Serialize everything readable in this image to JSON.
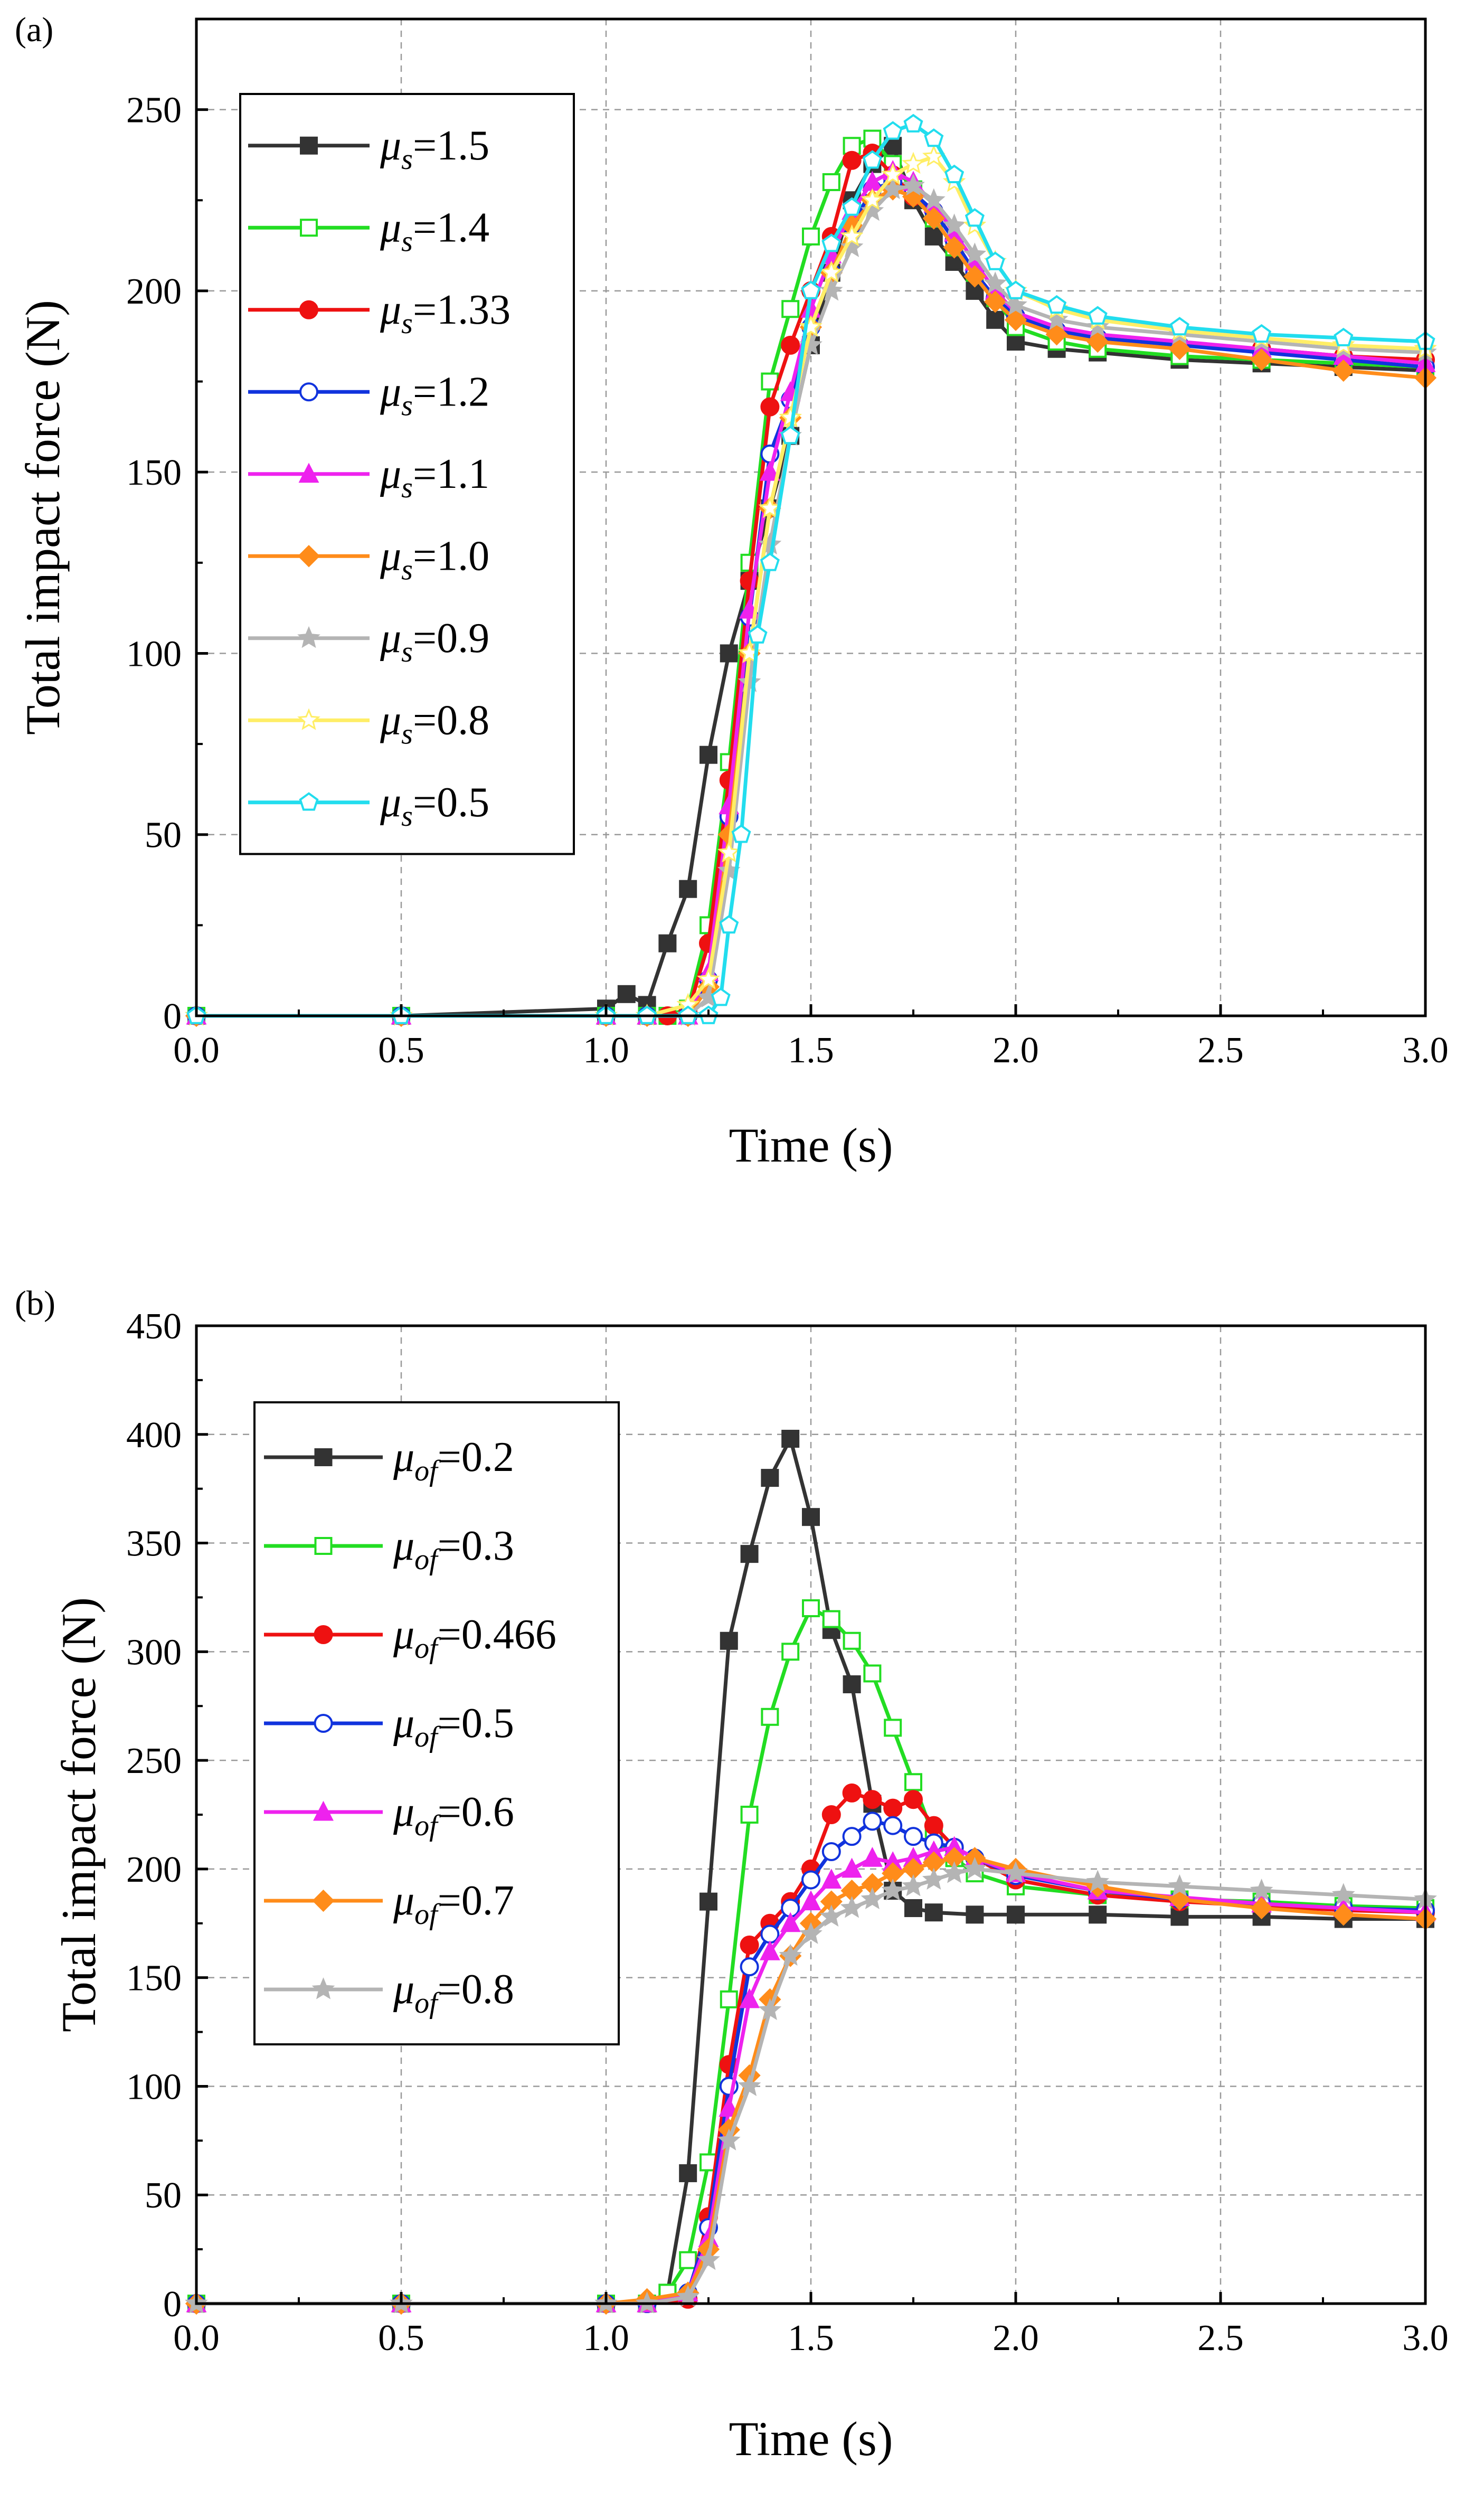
{
  "chart_data": [
    {
      "type": "line",
      "panel_label": "(a)",
      "title": "",
      "xlabel": "Time (s)",
      "ylabel": "Total impact force (N)",
      "xlim": [
        0.0,
        3.0
      ],
      "ylim": [
        0,
        275
      ],
      "xticks": [
        "0.0",
        "0.5",
        "1.0",
        "1.5",
        "2.0",
        "2.5",
        "3.0"
      ],
      "xtick_values": [
        0,
        0.5,
        1.0,
        1.5,
        2.0,
        2.5,
        3.0
      ],
      "yticks": [
        "0",
        "50",
        "100",
        "150",
        "200",
        "250"
      ],
      "ytick_values": [
        0,
        50,
        100,
        150,
        200,
        250
      ],
      "grid": true,
      "legend_placement": "top-left",
      "legend_symbol": "μ",
      "series": [
        {
          "name": "=1.5",
          "sub": "s",
          "color": "#333333",
          "marker": "square-filled",
          "x": [
            0,
            0.5,
            1.0,
            1.05,
            1.1,
            1.15,
            1.2,
            1.25,
            1.3,
            1.35,
            1.4,
            1.45,
            1.5,
            1.55,
            1.6,
            1.65,
            1.7,
            1.75,
            1.8,
            1.85,
            1.9,
            1.95,
            2.0,
            2.1,
            2.2,
            2.4,
            2.6,
            2.8,
            3.0
          ],
          "y": [
            0,
            0,
            2,
            6,
            3,
            20,
            35,
            72,
            100,
            120,
            140,
            160,
            185,
            205,
            225,
            235,
            240,
            225,
            215,
            208,
            200,
            192,
            186,
            184,
            183,
            181,
            180,
            179,
            178
          ]
        },
        {
          "name": "=1.4",
          "sub": "s",
          "color": "#22dd22",
          "marker": "square-open",
          "x": [
            0,
            0.5,
            1.0,
            1.1,
            1.15,
            1.2,
            1.25,
            1.3,
            1.35,
            1.4,
            1.45,
            1.5,
            1.55,
            1.6,
            1.65,
            1.7,
            1.75,
            1.8,
            1.85,
            1.9,
            1.95,
            2.0,
            2.1,
            2.2,
            2.4,
            2.6,
            2.8,
            3.0
          ],
          "y": [
            0,
            0,
            0,
            0,
            0,
            2,
            25,
            70,
            125,
            175,
            195,
            215,
            230,
            240,
            242,
            235,
            228,
            220,
            212,
            205,
            198,
            190,
            186,
            184,
            182,
            181,
            180,
            179
          ]
        },
        {
          "name": "=1.33",
          "sub": "s",
          "color": "#ee1111",
          "marker": "circle-filled",
          "x": [
            0,
            0.5,
            1.0,
            1.1,
            1.15,
            1.2,
            1.25,
            1.3,
            1.35,
            1.4,
            1.45,
            1.5,
            1.55,
            1.6,
            1.65,
            1.7,
            1.75,
            1.8,
            1.85,
            1.9,
            1.95,
            2.0,
            2.1,
            2.2,
            2.4,
            2.6,
            2.8,
            3.0
          ],
          "y": [
            0,
            0,
            0,
            0,
            0,
            1,
            20,
            65,
            120,
            168,
            185,
            200,
            215,
            236,
            238,
            232,
            226,
            222,
            214,
            205,
            198,
            193,
            189,
            187,
            185,
            184,
            182,
            181
          ]
        },
        {
          "name": "=1.2",
          "sub": "s",
          "color": "#1133dd",
          "marker": "circle-open",
          "x": [
            0,
            0.5,
            1.0,
            1.1,
            1.2,
            1.25,
            1.3,
            1.35,
            1.4,
            1.45,
            1.5,
            1.55,
            1.6,
            1.65,
            1.7,
            1.75,
            1.8,
            1.85,
            1.9,
            1.95,
            2.0,
            2.1,
            2.2,
            2.4,
            2.6,
            2.8,
            3.0
          ],
          "y": [
            0,
            0,
            0,
            0,
            0,
            10,
            55,
            110,
            155,
            170,
            190,
            205,
            218,
            228,
            230,
            227,
            222,
            214,
            205,
            198,
            193,
            189,
            187,
            185,
            183,
            181,
            179
          ]
        },
        {
          "name": "=1.1",
          "sub": "s",
          "color": "#ee22ee",
          "marker": "triangle-filled",
          "x": [
            0,
            0.5,
            1.0,
            1.1,
            1.2,
            1.25,
            1.3,
            1.35,
            1.4,
            1.45,
            1.5,
            1.55,
            1.6,
            1.65,
            1.7,
            1.75,
            1.8,
            1.85,
            1.9,
            1.95,
            2.0,
            2.1,
            2.2,
            2.4,
            2.6,
            2.8,
            3.0
          ],
          "y": [
            0,
            0,
            0,
            0,
            0,
            12,
            58,
            112,
            150,
            172,
            195,
            210,
            222,
            230,
            233,
            230,
            224,
            216,
            208,
            200,
            194,
            190,
            188,
            186,
            184,
            182,
            180
          ]
        },
        {
          "name": "=1.0",
          "sub": "s",
          "color": "#ff8c1a",
          "marker": "diamond-filled",
          "x": [
            0,
            0.5,
            1.0,
            1.1,
            1.2,
            1.25,
            1.3,
            1.35,
            1.4,
            1.45,
            1.5,
            1.55,
            1.6,
            1.65,
            1.7,
            1.75,
            1.8,
            1.85,
            1.9,
            1.95,
            2.0,
            2.1,
            2.2,
            2.4,
            2.6,
            2.8,
            3.0
          ],
          "y": [
            0,
            0,
            0,
            0,
            0,
            8,
            50,
            100,
            140,
            165,
            190,
            205,
            218,
            225,
            228,
            226,
            220,
            212,
            204,
            197,
            192,
            188,
            186,
            184,
            181,
            178,
            176
          ]
        },
        {
          "name": "=0.9",
          "sub": "s",
          "color": "#b4b4b4",
          "marker": "star-filled",
          "x": [
            0,
            0.5,
            1.0,
            1.1,
            1.2,
            1.25,
            1.3,
            1.35,
            1.4,
            1.45,
            1.5,
            1.55,
            1.6,
            1.65,
            1.7,
            1.75,
            1.8,
            1.85,
            1.9,
            1.95,
            2.0,
            2.1,
            2.2,
            2.4,
            2.6,
            2.8,
            3.0
          ],
          "y": [
            0,
            0,
            0,
            0,
            0,
            5,
            40,
            92,
            130,
            160,
            185,
            200,
            212,
            222,
            228,
            229,
            225,
            218,
            210,
            202,
            196,
            192,
            190,
            188,
            186,
            184,
            183
          ]
        },
        {
          "name": "=0.8",
          "sub": "s",
          "color": "#ffee66",
          "marker": "star-open",
          "x": [
            0,
            0.5,
            1.0,
            1.1,
            1.2,
            1.25,
            1.3,
            1.35,
            1.4,
            1.45,
            1.5,
            1.55,
            1.6,
            1.65,
            1.7,
            1.75,
            1.8,
            1.85,
            1.9,
            1.95,
            2.0,
            2.1,
            2.2,
            2.4,
            2.6,
            2.8,
            3.0
          ],
          "y": [
            0,
            0,
            0,
            0,
            3,
            10,
            45,
            100,
            140,
            165,
            190,
            205,
            215,
            225,
            232,
            235,
            237,
            230,
            218,
            208,
            200,
            195,
            192,
            189,
            187,
            185,
            184
          ]
        },
        {
          "name": "=0.5",
          "sub": "s",
          "color": "#22ddee",
          "marker": "pentagon-open",
          "x": [
            0,
            0.5,
            1.0,
            1.1,
            1.2,
            1.25,
            1.28,
            1.3,
            1.33,
            1.37,
            1.4,
            1.45,
            1.5,
            1.55,
            1.6,
            1.65,
            1.7,
            1.75,
            1.8,
            1.85,
            1.9,
            1.95,
            2.0,
            2.1,
            2.2,
            2.4,
            2.6,
            2.8,
            3.0
          ],
          "y": [
            0,
            0,
            0,
            0,
            0,
            0,
            5,
            25,
            50,
            105,
            125,
            160,
            200,
            213,
            223,
            236,
            244,
            246,
            242,
            232,
            220,
            208,
            200,
            196,
            193,
            190,
            188,
            187,
            186
          ]
        }
      ]
    },
    {
      "type": "line",
      "panel_label": "(b)",
      "title": "",
      "xlabel": "Time (s)",
      "ylabel": "Total impact force (N)",
      "xlim": [
        0.0,
        3.0
      ],
      "ylim": [
        0,
        450
      ],
      "xticks": [
        "0.0",
        "0.5",
        "1.0",
        "1.5",
        "2.0",
        "2.5",
        "3.0"
      ],
      "xtick_values": [
        0,
        0.5,
        1.0,
        1.5,
        2.0,
        2.5,
        3.0
      ],
      "yticks": [
        "0",
        "50",
        "100",
        "150",
        "200",
        "250",
        "300",
        "350",
        "400",
        "450"
      ],
      "ytick_values": [
        0,
        50,
        100,
        150,
        200,
        250,
        300,
        350,
        400,
        450
      ],
      "grid": true,
      "legend_placement": "top-left",
      "legend_symbol": "μ",
      "series": [
        {
          "name": "=0.2",
          "sub": "of",
          "color": "#333333",
          "marker": "square-filled",
          "x": [
            0,
            0.5,
            1.0,
            1.1,
            1.15,
            1.2,
            1.25,
            1.3,
            1.35,
            1.4,
            1.45,
            1.5,
            1.55,
            1.6,
            1.65,
            1.7,
            1.75,
            1.8,
            1.9,
            2.0,
            2.2,
            2.4,
            2.6,
            2.8,
            3.0
          ],
          "y": [
            0,
            0,
            0,
            0,
            5,
            60,
            185,
            305,
            345,
            380,
            398,
            362,
            310,
            285,
            230,
            190,
            182,
            180,
            179,
            179,
            179,
            178,
            178,
            177,
            177
          ]
        },
        {
          "name": "=0.3",
          "sub": "of",
          "color": "#22dd22",
          "marker": "square-open",
          "x": [
            0,
            0.5,
            1.0,
            1.1,
            1.15,
            1.2,
            1.25,
            1.3,
            1.35,
            1.4,
            1.45,
            1.5,
            1.55,
            1.6,
            1.65,
            1.7,
            1.75,
            1.8,
            1.85,
            1.9,
            2.0,
            2.2,
            2.4,
            2.6,
            2.8,
            3.0
          ],
          "y": [
            0,
            0,
            0,
            0,
            5,
            20,
            65,
            140,
            225,
            270,
            300,
            320,
            315,
            305,
            290,
            265,
            240,
            215,
            205,
            198,
            192,
            188,
            186,
            185,
            183,
            182
          ]
        },
        {
          "name": "=0.466",
          "sub": "of",
          "color": "#ee1111",
          "marker": "circle-filled",
          "x": [
            0,
            0.5,
            1.0,
            1.1,
            1.2,
            1.25,
            1.3,
            1.35,
            1.4,
            1.45,
            1.5,
            1.55,
            1.6,
            1.65,
            1.7,
            1.75,
            1.8,
            1.85,
            1.9,
            2.0,
            2.2,
            2.4,
            2.6,
            2.8,
            3.0
          ],
          "y": [
            0,
            0,
            0,
            0,
            2,
            40,
            110,
            165,
            175,
            185,
            200,
            225,
            235,
            232,
            228,
            232,
            220,
            210,
            205,
            195,
            188,
            185,
            183,
            181,
            180
          ]
        },
        {
          "name": "=0.5",
          "sub": "of",
          "color": "#1133dd",
          "marker": "circle-open",
          "x": [
            0,
            0.5,
            1.0,
            1.1,
            1.2,
            1.25,
            1.3,
            1.35,
            1.4,
            1.45,
            1.5,
            1.55,
            1.6,
            1.65,
            1.7,
            1.75,
            1.8,
            1.85,
            1.9,
            2.0,
            2.2,
            2.4,
            2.6,
            2.8,
            3.0
          ],
          "y": [
            0,
            0,
            0,
            0,
            5,
            35,
            100,
            155,
            170,
            182,
            195,
            208,
            215,
            222,
            220,
            215,
            212,
            210,
            205,
            197,
            190,
            186,
            184,
            182,
            181
          ]
        },
        {
          "name": "=0.6",
          "sub": "of",
          "color": "#ee22ee",
          "marker": "triangle-filled",
          "x": [
            0,
            0.5,
            1.0,
            1.1,
            1.2,
            1.25,
            1.3,
            1.35,
            1.4,
            1.45,
            1.5,
            1.55,
            1.6,
            1.65,
            1.7,
            1.75,
            1.8,
            1.85,
            1.9,
            2.0,
            2.2,
            2.4,
            2.6,
            2.8,
            3.0
          ],
          "y": [
            0,
            0,
            0,
            0,
            5,
            30,
            90,
            140,
            162,
            175,
            185,
            195,
            200,
            205,
            203,
            205,
            208,
            210,
            205,
            198,
            190,
            187,
            184,
            182,
            180
          ]
        },
        {
          "name": "=0.7",
          "sub": "of",
          "color": "#ff8c1a",
          "marker": "diamond-filled",
          "x": [
            0,
            0.5,
            1.0,
            1.1,
            1.2,
            1.25,
            1.3,
            1.35,
            1.4,
            1.45,
            1.5,
            1.55,
            1.6,
            1.65,
            1.7,
            1.75,
            1.8,
            1.85,
            1.9,
            2.0,
            2.2,
            2.4,
            2.6,
            2.8,
            3.0
          ],
          "y": [
            0,
            0,
            0,
            2,
            5,
            25,
            80,
            105,
            140,
            160,
            175,
            185,
            190,
            193,
            198,
            200,
            203,
            205,
            205,
            200,
            192,
            186,
            182,
            179,
            177
          ]
        },
        {
          "name": "=0.8",
          "sub": "of",
          "color": "#b4b4b4",
          "marker": "star-filled",
          "x": [
            0,
            0.5,
            1.0,
            1.1,
            1.2,
            1.25,
            1.3,
            1.35,
            1.4,
            1.45,
            1.5,
            1.55,
            1.6,
            1.65,
            1.7,
            1.75,
            1.8,
            1.85,
            1.9,
            2.0,
            2.2,
            2.4,
            2.6,
            2.8,
            3.0
          ],
          "y": [
            0,
            0,
            0,
            0,
            3,
            20,
            75,
            100,
            135,
            160,
            170,
            178,
            182,
            186,
            190,
            192,
            195,
            198,
            200,
            198,
            194,
            192,
            190,
            188,
            186
          ]
        }
      ]
    }
  ]
}
